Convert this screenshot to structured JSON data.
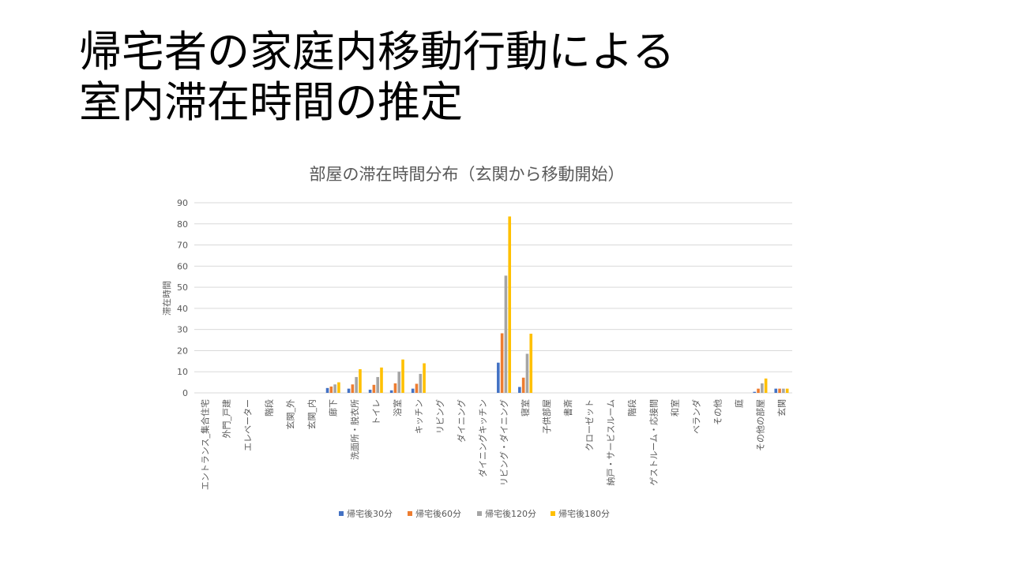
{
  "slide": {
    "title_line1": "帰宅者の家庭内移動行動による",
    "title_line2": "室内滞在時間の推定"
  },
  "chart_data": {
    "type": "bar",
    "title": "部屋の滞在時間分布（玄関から移動開始）",
    "xlabel": "",
    "ylabel": "滞在時間",
    "ylim": [
      0,
      90
    ],
    "yticks": [
      0,
      10,
      20,
      30,
      40,
      50,
      60,
      70,
      80,
      90
    ],
    "grid": true,
    "legend_position": "bottom",
    "categories": [
      "エントランス_集合住宅",
      "外門_戸建",
      "エレベーター",
      "階段",
      "玄関_外",
      "玄関_内",
      "廊下",
      "洗面所・脱衣所",
      "トイレ",
      "浴室",
      "キッチン",
      "リビング",
      "ダイニング",
      "ダイニングキッチン",
      "リビング・ダイニング",
      "寝室",
      "子供部屋",
      "書斎",
      "クローゼット",
      "納戸・サービスルーム",
      "階段",
      "ゲストルーム・応接間",
      "和室",
      "ベランダ",
      "その他",
      "庭",
      "その他の部屋",
      "玄関"
    ],
    "series": [
      {
        "name": "帰宅後30分",
        "color": "#4472C4",
        "values": [
          0,
          0,
          0,
          0,
          0,
          0,
          2.3,
          2.0,
          1.5,
          1.2,
          2.0,
          0,
          0,
          0,
          14.3,
          2.8,
          0,
          0,
          0,
          0,
          0,
          0,
          0,
          0,
          0,
          0,
          0.5,
          2.0
        ]
      },
      {
        "name": "帰宅後60分",
        "color": "#ED7D31",
        "values": [
          0,
          0,
          0,
          0,
          0,
          0,
          3.0,
          4.0,
          3.8,
          4.5,
          4.3,
          0,
          0,
          0,
          28.2,
          7.2,
          0,
          0,
          0,
          0,
          0,
          0,
          0,
          0,
          0,
          0,
          2.0,
          2.0
        ]
      },
      {
        "name": "帰宅後120分",
        "color": "#A5A5A5",
        "values": [
          0,
          0,
          0,
          0,
          0,
          0,
          4.0,
          7.5,
          7.5,
          10.0,
          9.0,
          0,
          0,
          0,
          55.5,
          18.5,
          0,
          0,
          0,
          0,
          0,
          0,
          0,
          0,
          0,
          0,
          4.5,
          2.0
        ]
      },
      {
        "name": "帰宅後180分",
        "color": "#FFC000",
        "values": [
          0,
          0,
          0,
          0,
          0,
          0,
          5.0,
          11.2,
          12.0,
          15.8,
          14.0,
          0,
          0,
          0,
          83.5,
          28.0,
          0,
          0,
          0,
          0,
          0,
          0,
          0,
          0,
          0,
          0,
          6.8,
          2.0
        ]
      }
    ]
  }
}
